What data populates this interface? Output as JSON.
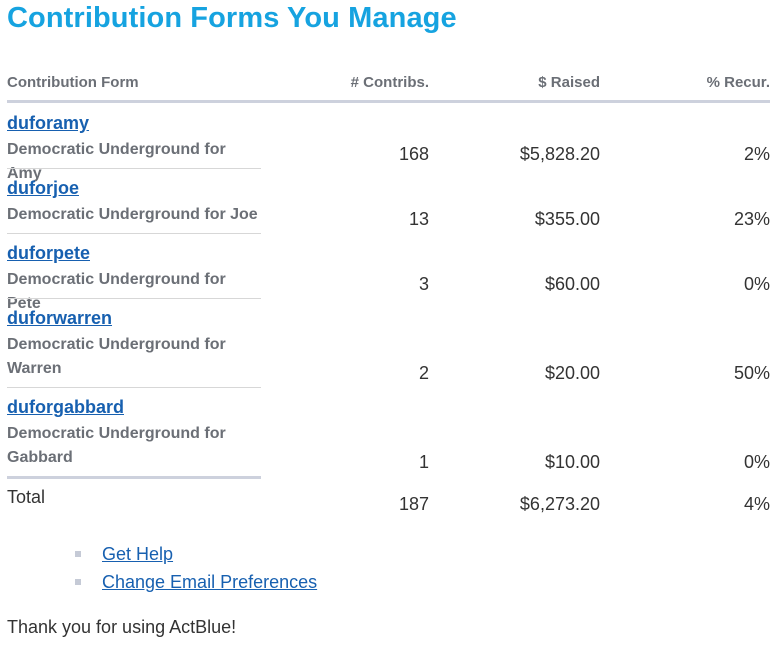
{
  "page": {
    "title": "Contribution Forms You Manage"
  },
  "table": {
    "headers": {
      "form": "Contribution Form",
      "contribs": "# Contribs.",
      "raised": "$ Raised",
      "recur": "% Recur."
    },
    "rows": [
      {
        "name": "duforamy",
        "description": "Democratic Underground for Amy",
        "contribs": "168",
        "raised": "$5,828.20",
        "recur": "2%"
      },
      {
        "name": "duforjoe",
        "description": "Democratic Underground for Joe",
        "contribs": "13",
        "raised": "$355.00",
        "recur": "23%"
      },
      {
        "name": "duforpete",
        "description": "Democratic Underground for Pete",
        "contribs": "3",
        "raised": "$60.00",
        "recur": "0%"
      },
      {
        "name": "duforwarren",
        "description": "Democratic Underground for Warren",
        "contribs": "2",
        "raised": "$20.00",
        "recur": "50%"
      },
      {
        "name": "duforgabbard",
        "description": "Democratic Underground for Gabbard",
        "contribs": "1",
        "raised": "$10.00",
        "recur": "0%"
      }
    ],
    "total": {
      "label": "Total",
      "contribs": "187",
      "raised": "$6,273.20",
      "recur": "4%"
    }
  },
  "links": [
    {
      "label": "Get Help"
    },
    {
      "label": "Change Email Preferences"
    }
  ],
  "footer": {
    "thanks": "Thank you for using ActBlue!"
  },
  "colors": {
    "title": "#16a3e0",
    "link": "#1760b0",
    "muted_text": "#6b6f76",
    "rule": "#cdd1dd"
  }
}
